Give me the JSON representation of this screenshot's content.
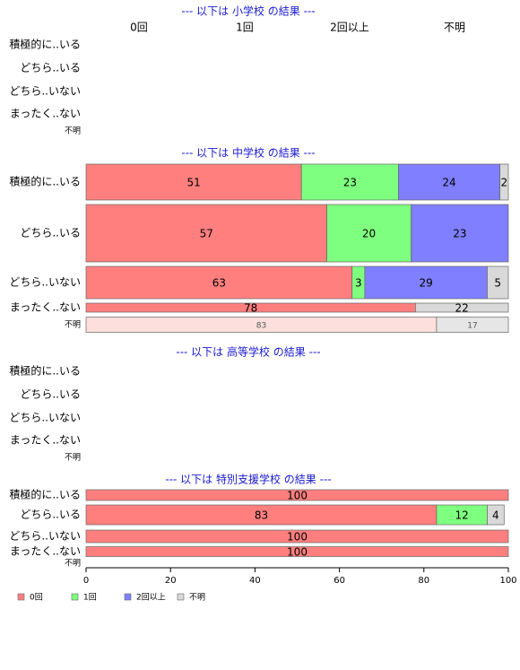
{
  "chart_data": {
    "type": "bar",
    "categories": [
      "積極的に..いる",
      "どちら..いる",
      "どちら..いない",
      "まったく..ない",
      "不明"
    ],
    "series": [
      {
        "name": "0回",
        "color": "#ff7f7f"
      },
      {
        "name": "1回",
        "color": "#7fff7f"
      },
      {
        "name": "2回以上",
        "color": "#7f7fff"
      },
      {
        "name": "不明",
        "color": "#d9d9d9"
      }
    ],
    "panels": [
      {
        "title": "--- 以下は 小学校 の結果 ---",
        "values": [
          null,
          null,
          null,
          null,
          null
        ]
      },
      {
        "title": "--- 以下は 中学校 の結果 ---",
        "values": [
          [
            51,
            23,
            24,
            2
          ],
          [
            57,
            20,
            23,
            null
          ],
          [
            63,
            3,
            29,
            5
          ],
          [
            78,
            null,
            null,
            22
          ],
          [
            83,
            null,
            null,
            17
          ]
        ]
      },
      {
        "title": "--- 以下は 高等学校 の結果 ---",
        "values": [
          null,
          null,
          null,
          null,
          null
        ]
      },
      {
        "title": "--- 以下は 特別支援学校 の結果 ---",
        "values": [
          [
            100,
            null,
            null,
            null
          ],
          [
            83,
            12,
            null,
            4
          ],
          [
            100,
            null,
            null,
            null
          ],
          [
            100,
            null,
            null,
            null
          ],
          null
        ]
      }
    ],
    "xlim": [
      0,
      100
    ],
    "xticks": [
      0,
      20,
      40,
      60,
      80,
      100
    ]
  }
}
